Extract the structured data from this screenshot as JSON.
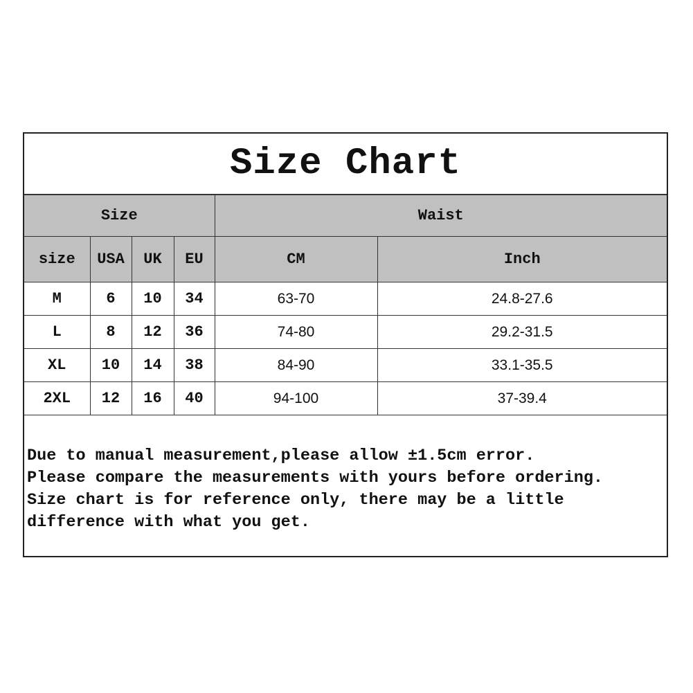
{
  "title": "Size Chart",
  "group_headers": [
    "Size",
    "Waist"
  ],
  "columns": [
    "size",
    "USA",
    "UK",
    "EU",
    "CM",
    "Inch"
  ],
  "rows": [
    [
      "M",
      "6",
      "10",
      "34",
      "63-70",
      "24.8-27.6"
    ],
    [
      "L",
      "8",
      "12",
      "36",
      "74-80",
      "29.2-31.5"
    ],
    [
      "XL",
      "10",
      "14",
      "38",
      "84-90",
      "33.1-35.5"
    ],
    [
      "2XL",
      "12",
      "16",
      "40",
      "94-100",
      "37-39.4"
    ]
  ],
  "notes": [
    "Due to manual measurement,please allow ±1.5cm error.",
    "Please compare the measurements with yours before ordering.",
    "Size chart is for reference only, there may be a little",
    "difference with what you get."
  ],
  "colors": {
    "header_bg": "#c0c0c0",
    "border": "#222222"
  }
}
